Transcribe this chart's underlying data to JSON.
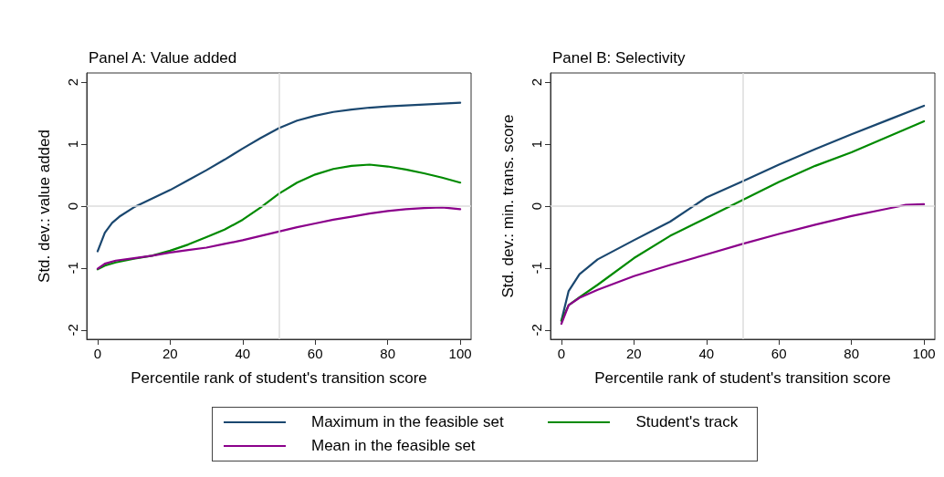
{
  "chart_data": [
    {
      "type": "line",
      "title": "Panel A: Value added",
      "xlabel": "Percentile rank of student's transition score",
      "ylabel": "Std. dev.: value added",
      "xlim": [
        -3,
        103
      ],
      "ylim": [
        -2.15,
        2.15
      ],
      "xticks": [
        0,
        20,
        40,
        60,
        80,
        100
      ],
      "yticks": [
        -2,
        -1,
        0,
        1,
        2
      ],
      "grid": false,
      "legend": "bottom",
      "marker": "none",
      "line_style": "solid",
      "ref_lines": [
        {
          "axis": "x",
          "value": 50,
          "color": "#dcdcdc"
        },
        {
          "axis": "y",
          "value": 0,
          "color": "#dcdcdc"
        }
      ],
      "series": [
        {
          "name": "Maximum in the feasible set",
          "color": "#1a476f",
          "x": [
            0,
            2,
            4,
            6,
            10,
            15,
            20,
            25,
            30,
            35,
            40,
            45,
            50,
            55,
            60,
            65,
            70,
            75,
            80,
            90,
            100
          ],
          "values": [
            -0.73,
            -0.43,
            -0.27,
            -0.17,
            -0.02,
            0.12,
            0.26,
            0.42,
            0.58,
            0.75,
            0.93,
            1.1,
            1.26,
            1.38,
            1.46,
            1.52,
            1.56,
            1.59,
            1.61,
            1.64,
            1.67
          ]
        },
        {
          "name": "Student's track",
          "color": "#008a00",
          "x": [
            0,
            2,
            5,
            10,
            15,
            20,
            25,
            30,
            35,
            40,
            45,
            50,
            55,
            60,
            65,
            70,
            75,
            80,
            85,
            90,
            95,
            100
          ],
          "values": [
            -1.02,
            -0.96,
            -0.91,
            -0.85,
            -0.8,
            -0.72,
            -0.62,
            -0.5,
            -0.38,
            -0.22,
            -0.02,
            0.2,
            0.38,
            0.51,
            0.6,
            0.65,
            0.67,
            0.64,
            0.59,
            0.53,
            0.46,
            0.38
          ]
        },
        {
          "name": "Mean in the feasible set",
          "color": "#8b008b",
          "x": [
            0,
            2,
            5,
            10,
            15,
            20,
            25,
            30,
            35,
            40,
            45,
            50,
            55,
            60,
            65,
            70,
            75,
            80,
            85,
            90,
            95,
            100
          ],
          "values": [
            -1.01,
            -0.93,
            -0.88,
            -0.84,
            -0.8,
            -0.75,
            -0.71,
            -0.67,
            -0.61,
            -0.55,
            -0.48,
            -0.41,
            -0.34,
            -0.28,
            -0.22,
            -0.17,
            -0.12,
            -0.08,
            -0.05,
            -0.03,
            -0.02,
            -0.05
          ]
        }
      ]
    },
    {
      "type": "line",
      "title": "Panel B: Selectivity",
      "xlabel": "Percentile rank of student's transition score",
      "ylabel": "Std. dev.: min. trans. score",
      "xlim": [
        -3,
        103
      ],
      "ylim": [
        -2.15,
        2.15
      ],
      "xticks": [
        0,
        20,
        40,
        60,
        80,
        100
      ],
      "yticks": [
        -2,
        -1,
        0,
        1,
        2
      ],
      "grid": false,
      "legend": "bottom",
      "marker": "none",
      "line_style": "solid",
      "ref_lines": [
        {
          "axis": "x",
          "value": 50,
          "color": "#dcdcdc"
        },
        {
          "axis": "y",
          "value": 0,
          "color": "#dcdcdc"
        }
      ],
      "series": [
        {
          "name": "Maximum in the feasible set",
          "color": "#1a476f",
          "x": [
            0,
            2,
            5,
            10,
            20,
            30,
            40,
            50,
            60,
            70,
            80,
            90,
            100
          ],
          "values": [
            -1.85,
            -1.37,
            -1.1,
            -0.86,
            -0.55,
            -0.25,
            0.14,
            0.4,
            0.67,
            0.92,
            1.16,
            1.39,
            1.62
          ]
        },
        {
          "name": "Student's track",
          "color": "#008a00",
          "x": [
            0,
            2,
            5,
            10,
            20,
            30,
            40,
            50,
            60,
            70,
            80,
            90,
            100
          ],
          "values": [
            -1.85,
            -1.6,
            -1.47,
            -1.27,
            -0.84,
            -0.48,
            -0.19,
            0.1,
            0.39,
            0.65,
            0.87,
            1.12,
            1.37
          ]
        },
        {
          "name": "Mean in the feasible set",
          "color": "#8b008b",
          "x": [
            0,
            2,
            5,
            10,
            20,
            30,
            40,
            50,
            60,
            70,
            80,
            90,
            95,
            100
          ],
          "values": [
            -1.9,
            -1.6,
            -1.48,
            -1.35,
            -1.13,
            -0.95,
            -0.78,
            -0.61,
            -0.45,
            -0.3,
            -0.16,
            -0.04,
            0.02,
            0.03
          ]
        }
      ]
    }
  ]
}
